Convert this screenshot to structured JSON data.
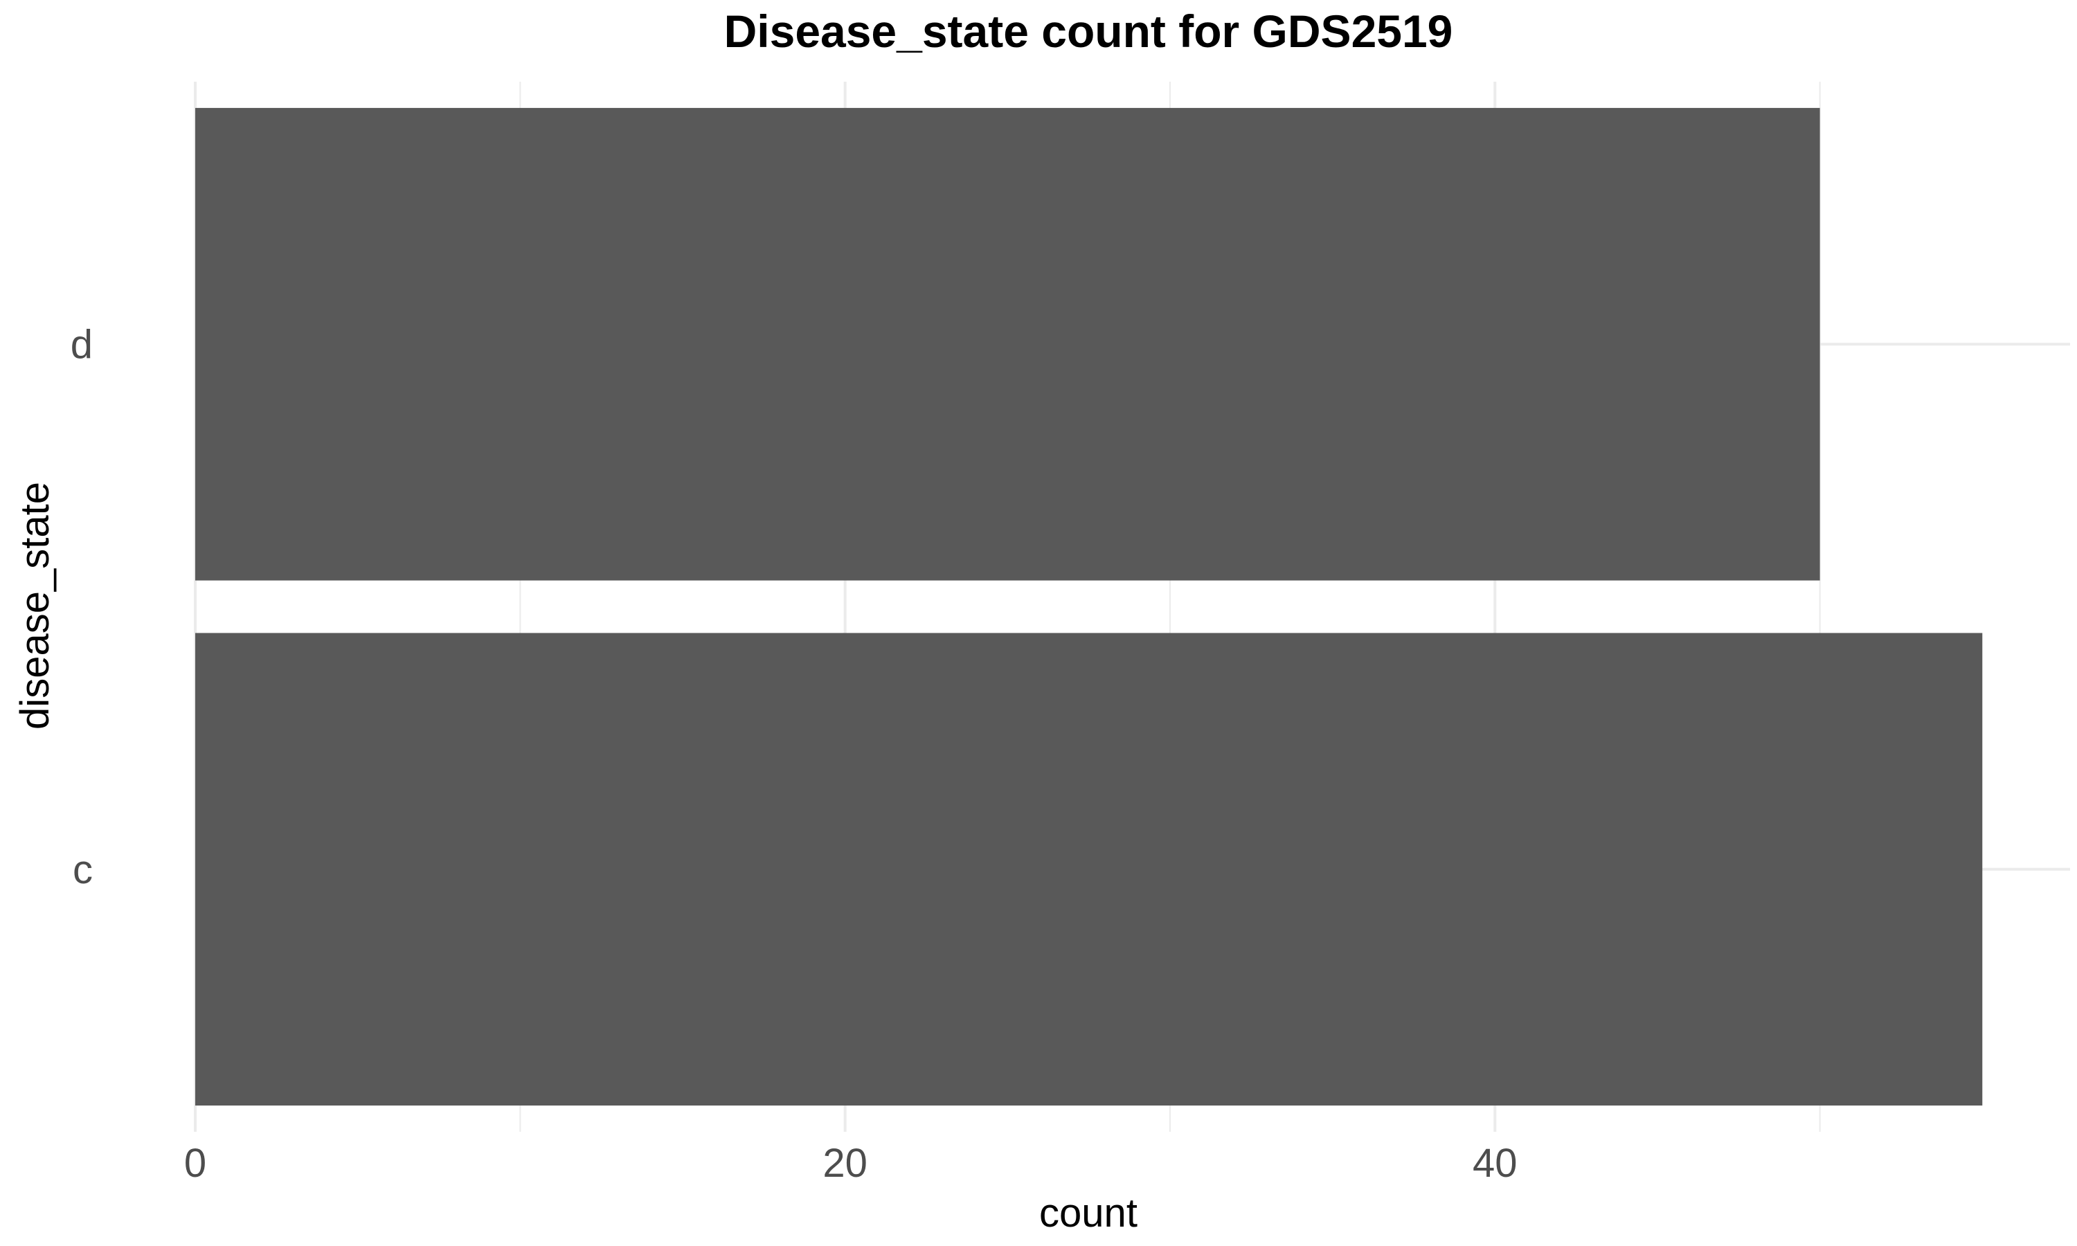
{
  "chart_data": {
    "type": "bar",
    "orientation": "horizontal",
    "title": "Disease_state count for GDS2519",
    "xlabel": "count",
    "ylabel": "disease_state",
    "categories": [
      "d",
      "c"
    ],
    "values": [
      50,
      55
    ],
    "xlim": [
      0,
      57.7
    ],
    "x_ticks": [
      0,
      20,
      40
    ],
    "x_minor_ticks": [
      10,
      30,
      50
    ],
    "grid": true,
    "bar_color": "#595959",
    "grid_color": "#ebebeb"
  }
}
